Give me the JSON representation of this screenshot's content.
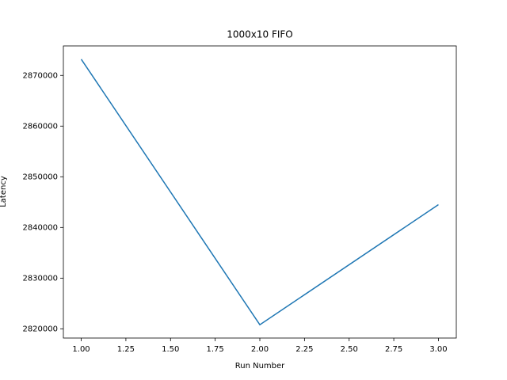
{
  "chart_data": {
    "type": "line",
    "title": "1000x10 FIFO",
    "x_label": "Run Number",
    "y_label": "Latency",
    "x": [
      1,
      2,
      3
    ],
    "series": [
      {
        "name": "Latency",
        "color": "#1f77b4",
        "values": [
          2873200,
          2820800,
          2844500
        ]
      }
    ],
    "xlim": [
      0.9,
      3.1
    ],
    "xticks": [
      {
        "value": 1.0,
        "label": "1.00"
      },
      {
        "value": 1.25,
        "label": "1.25"
      },
      {
        "value": 1.5,
        "label": "1.50"
      },
      {
        "value": 1.75,
        "label": "1.75"
      },
      {
        "value": 2.0,
        "label": "2.00"
      },
      {
        "value": 2.25,
        "label": "2.25"
      },
      {
        "value": 2.5,
        "label": "2.50"
      },
      {
        "value": 2.75,
        "label": "2.75"
      },
      {
        "value": 3.0,
        "label": "3.00"
      }
    ],
    "ylim": [
      2818180,
      2875820
    ],
    "yticks": [
      2820000,
      2830000,
      2840000,
      2850000,
      2860000,
      2870000
    ]
  }
}
